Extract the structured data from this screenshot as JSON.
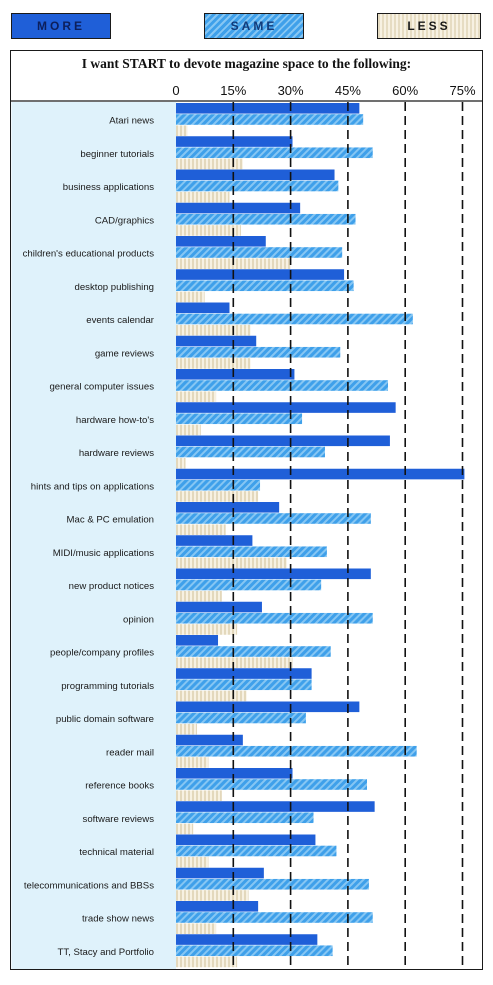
{
  "legend": {
    "more": "MORE",
    "same": "SAME",
    "less": "LESS"
  },
  "colors": {
    "more": "#1f5fd8",
    "same": "#4aa6ec",
    "less": "#e8dfc8",
    "label_panel": "#dff2fb"
  },
  "chart_data": {
    "type": "bar",
    "orientation": "horizontal",
    "title": "I want START to devote magazine space to the following:",
    "x_ticks": [
      "0",
      "15%",
      "30%",
      "45%",
      "60%",
      "75%"
    ],
    "x_tick_values": [
      0,
      15,
      30,
      45,
      60,
      75
    ],
    "xlim": [
      0,
      75
    ],
    "grid": true,
    "categories": [
      "Atari news",
      "beginner tutorials",
      "business applications",
      "CAD/graphics",
      "children's educational products",
      "desktop publishing",
      "events calendar",
      "game reviews",
      "general computer issues",
      "hardware how-to's",
      "hardware reviews",
      "hints and tips on applications",
      "Mac & PC emulation",
      "MIDI/music applications",
      "new product notices",
      "opinion",
      "people/company profiles",
      "programming tutorials",
      "public domain software",
      "reader mail",
      "reference books",
      "software reviews",
      "technical material",
      "telecommunications and BBSs",
      "trade show news",
      "TT, Stacy and Portfolio"
    ],
    "series": [
      {
        "name": "MORE",
        "values": [
          48,
          30.5,
          41.5,
          32.5,
          23.5,
          44,
          14,
          21,
          31,
          57.5,
          56,
          75.5,
          27,
          20,
          51,
          22.5,
          11,
          35.5,
          48,
          17.5,
          30.5,
          52,
          36.5,
          23,
          21.5,
          37
        ]
      },
      {
        "name": "SAME",
        "values": [
          49,
          51.5,
          42.5,
          47,
          43.5,
          46.5,
          62,
          43,
          55.5,
          33,
          39,
          22,
          51,
          39.5,
          38,
          51.5,
          40.5,
          35.5,
          34,
          63,
          50,
          36,
          42,
          50.5,
          51.5,
          41
        ]
      },
      {
        "name": "LESS",
        "values": [
          3,
          17.5,
          14,
          17,
          30,
          7.5,
          19.5,
          19.5,
          10.5,
          6.5,
          2.5,
          21.5,
          13,
          29,
          12,
          16,
          30.5,
          18.5,
          5.5,
          8.5,
          12,
          4.5,
          8.5,
          19,
          10.5,
          16
        ]
      }
    ]
  }
}
